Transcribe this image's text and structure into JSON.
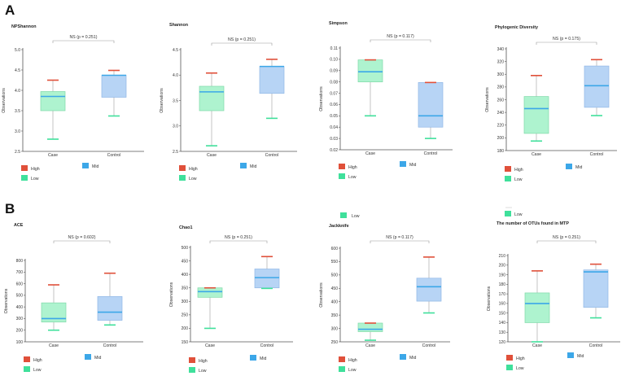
{
  "panel_labels": [
    "A",
    "B"
  ],
  "legend": {
    "labels": [
      "High",
      "Mid",
      "Low"
    ],
    "colors": [
      "#e0503a",
      "#3ca7e8",
      "#3fe09b"
    ],
    "stray_low_labels": [
      "Low",
      "Low"
    ]
  },
  "colors": {
    "case_fill": "#aef3cf",
    "case_edge": "#7fd9a8",
    "control_fill": "#b7d4f5",
    "control_edge": "#92b8e6",
    "max_line": "#e0503a",
    "median_line": "#3ca7e8",
    "min_line": "#3fe09b",
    "axis": "#555555",
    "whisker": "#b5b5b5",
    "bracket": "#9a9a9a"
  },
  "chart_data": [
    {
      "type": "box",
      "panel": "A",
      "title": "NPShannon",
      "ylabel": "Observations",
      "categories": [
        "Case",
        "Control"
      ],
      "ylim": [
        2.5,
        5.0
      ],
      "yticks": [
        "2.5",
        "3.0",
        "3.5",
        "4.0",
        "4.5",
        "5.0"
      ],
      "significance": "NS (p = 0.251)",
      "boxes": [
        {
          "name": "Case",
          "min": 2.8,
          "q1": 3.5,
          "median": 3.85,
          "q3": 3.97,
          "max": 4.25
        },
        {
          "name": "Control",
          "min": 3.37,
          "q1": 3.83,
          "median": 4.37,
          "q3": 4.37,
          "max": 4.49
        }
      ]
    },
    {
      "type": "box",
      "panel": "A",
      "title": "Shannon",
      "ylabel": "Observations",
      "categories": [
        "Case",
        "Control"
      ],
      "ylim": [
        2.5,
        4.5
      ],
      "yticks": [
        "2.5",
        "3.0",
        "3.5",
        "4.0",
        "4.5"
      ],
      "significance": "NS (p = 0.251)",
      "boxes": [
        {
          "name": "Case",
          "min": 2.61,
          "q1": 3.3,
          "median": 3.67,
          "q3": 3.78,
          "max": 4.04
        },
        {
          "name": "Control",
          "min": 3.15,
          "q1": 3.64,
          "median": 4.17,
          "q3": 4.17,
          "max": 4.31
        }
      ]
    },
    {
      "type": "box",
      "panel": "A",
      "title": "Simpson",
      "ylabel": "Observations",
      "categories": [
        "Case",
        "Control"
      ],
      "ylim": [
        0.02,
        0.11
      ],
      "yticks": [
        "0.02",
        "0.03",
        "0.04",
        "0.05",
        "0.06",
        "0.07",
        "0.08",
        "0.09",
        "0.10",
        "0.11"
      ],
      "significance": "NS (p = 0.117)",
      "boxes": [
        {
          "name": "Case",
          "min": 0.05,
          "q1": 0.08,
          "median": 0.089,
          "q3": 0.0995,
          "max": 0.0995
        },
        {
          "name": "Control",
          "min": 0.03,
          "q1": 0.04,
          "median": 0.05,
          "q3": 0.0795,
          "max": 0.0795
        }
      ]
    },
    {
      "type": "box",
      "panel": "A",
      "title": "Phylogenic Diversity",
      "ylabel": "Observations",
      "categories": [
        "Case",
        "Control"
      ],
      "ylim": [
        180,
        340
      ],
      "yticks": [
        "180",
        "200",
        "220",
        "240",
        "260",
        "280",
        "300",
        "320",
        "340"
      ],
      "significance": "NS (p = 0.175)",
      "boxes": [
        {
          "name": "Case",
          "min": 195,
          "q1": 207,
          "median": 246,
          "q3": 265,
          "max": 298
        },
        {
          "name": "Control",
          "min": 235,
          "q1": 248,
          "median": 282,
          "q3": 313,
          "max": 323
        }
      ]
    },
    {
      "type": "box",
      "panel": "B",
      "title": "ACE",
      "ylabel": "Observations",
      "categories": [
        "Case",
        "Control"
      ],
      "ylim": [
        100,
        800
      ],
      "yticks": [
        "100",
        "200",
        "300",
        "400",
        "500",
        "600",
        "700",
        "800"
      ],
      "significance": "NS (p = 0.602)",
      "boxes": [
        {
          "name": "Case",
          "min": 200,
          "q1": 270,
          "median": 300,
          "q3": 435,
          "max": 590
        },
        {
          "name": "Control",
          "min": 245,
          "q1": 285,
          "median": 355,
          "q3": 490,
          "max": 690
        }
      ]
    },
    {
      "type": "box",
      "panel": "B",
      "title": "Chao1",
      "ylabel": "Observations",
      "categories": [
        "Case",
        "Control"
      ],
      "ylim": [
        150,
        500
      ],
      "yticks": [
        "150",
        "200",
        "250",
        "300",
        "350",
        "400",
        "450",
        "500"
      ],
      "significance": "NS (p = 0.251)",
      "boxes": [
        {
          "name": "Case",
          "min": 200,
          "q1": 315,
          "median": 336,
          "q3": 350,
          "max": 350
        },
        {
          "name": "Control",
          "min": 348,
          "q1": 350,
          "median": 388,
          "q3": 420,
          "max": 466
        }
      ]
    },
    {
      "type": "box",
      "panel": "B",
      "title": "Jackknife",
      "ylabel": "Observations",
      "categories": [
        "Case",
        "Control"
      ],
      "ylim": [
        250,
        600
      ],
      "yticks": [
        "250",
        "300",
        "350",
        "400",
        "450",
        "500",
        "550",
        "600"
      ],
      "significance": "NS (p = 0.117)",
      "boxes": [
        {
          "name": "Case",
          "min": 256,
          "q1": 288,
          "median": 297,
          "q3": 320,
          "max": 320
        },
        {
          "name": "Control",
          "min": 358,
          "q1": 402,
          "median": 456,
          "q3": 488,
          "max": 567
        }
      ]
    },
    {
      "type": "box",
      "panel": "B",
      "title": "The number of OTUs found in MTP",
      "ylabel": "Observations",
      "categories": [
        "Case",
        "Control"
      ],
      "ylim": [
        120,
        210
      ],
      "yticks": [
        "120",
        "130",
        "140",
        "150",
        "160",
        "170",
        "180",
        "190",
        "200",
        "210"
      ],
      "significance": "NS (p = 0.251)",
      "boxes": [
        {
          "name": "Case",
          "min": 120,
          "q1": 140,
          "median": 160,
          "q3": 171,
          "max": 194
        },
        {
          "name": "Control",
          "min": 145,
          "q1": 156,
          "median": 193,
          "q3": 195,
          "max": 201
        }
      ]
    }
  ]
}
